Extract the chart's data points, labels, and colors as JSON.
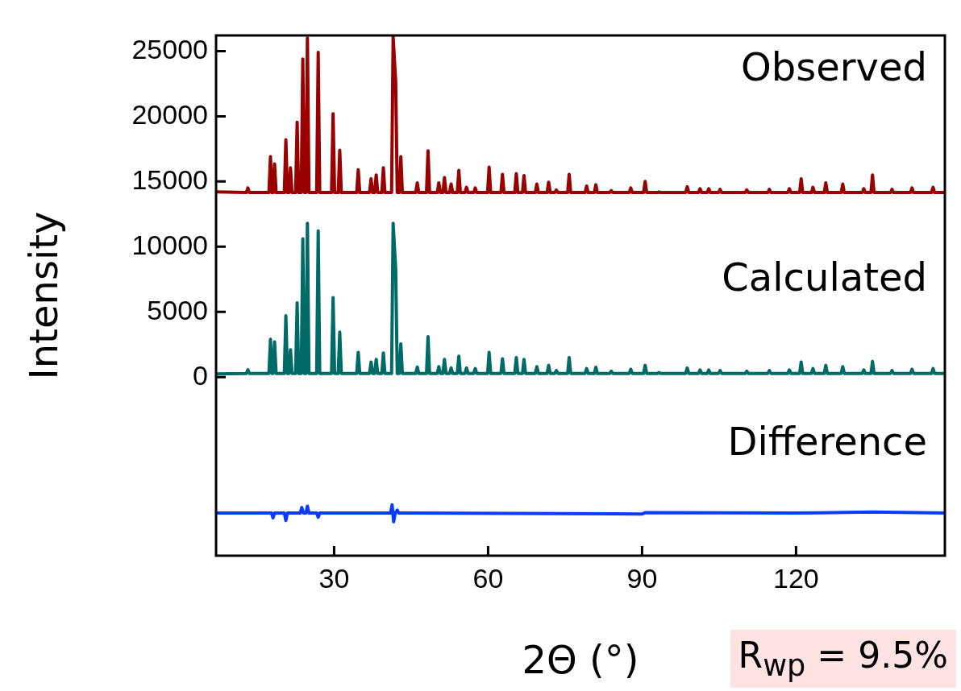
{
  "chart_data": {
    "type": "line",
    "xlabel": "2Θ (°)",
    "ylabel": "Intensity",
    "xlim": [
      7,
      149
    ],
    "xticks": [
      30,
      60,
      90,
      120
    ],
    "ylim": [
      -13700,
      26200
    ],
    "yticks": [
      0,
      5000,
      10000,
      15000,
      20000,
      25000
    ],
    "x": [
      7,
      12.9,
      13.2,
      13.5,
      17.3,
      17.6,
      17.9,
      18.1,
      18.4,
      18.7,
      20.3,
      20.6,
      20.9,
      21.2,
      21.5,
      21.8,
      22.5,
      22.8,
      23.1,
      23.6,
      23.9,
      24.2,
      24.5,
      24.8,
      25.1,
      26.6,
      26.9,
      27.2,
      29.5,
      29.8,
      30.1,
      30.8,
      31.1,
      31.4,
      34.4,
      34.7,
      35.0,
      36.9,
      37.2,
      37.5,
      37.9,
      38.2,
      38.5,
      39.3,
      39.6,
      39.9,
      41.2,
      41.5,
      42.0,
      42.3,
      42.7,
      43.0,
      43.3,
      45.9,
      46.2,
      46.5,
      48.0,
      48.3,
      48.6,
      50.1,
      50.4,
      50.7,
      51.2,
      51.5,
      51.8,
      52.5,
      52.8,
      53.1,
      54.0,
      54.3,
      54.6,
      55.5,
      55.8,
      56.1,
      57.2,
      57.5,
      57.8,
      59.9,
      60.2,
      60.5,
      62.5,
      62.8,
      63.1,
      65.2,
      65.5,
      65.8,
      66.7,
      67.0,
      67.3,
      69.2,
      69.5,
      69.8,
      71.5,
      71.8,
      72.1,
      73.0,
      73.3,
      73.6,
      75.5,
      75.8,
      76.1,
      78.9,
      79.2,
      79.5,
      80.7,
      81.0,
      81.3,
      83.7,
      84.0,
      84.3,
      87.5,
      87.8,
      88.1,
      90.3,
      90.6,
      90.9,
      93.0,
      93.3,
      93.6,
      98.5,
      98.8,
      99.1,
      101.0,
      101.3,
      101.6,
      102.7,
      103.0,
      103.3,
      104.9,
      105.2,
      105.5,
      110.1,
      110.4,
      110.7,
      114.5,
      114.8,
      115.1,
      118.4,
      118.7,
      119.0,
      120.7,
      121.0,
      121.3,
      123.0,
      123.3,
      123.6,
      125.5,
      125.8,
      126.1,
      128.8,
      129.1,
      129.4,
      132.9,
      133.2,
      133.5,
      134.6,
      134.9,
      135.2,
      138.4,
      138.7,
      139.0,
      142.3,
      142.6,
      142.9,
      146.4,
      146.7,
      147.0,
      148.9
    ],
    "series": [
      {
        "name": "Observed",
        "color": "#990000",
        "values": [
          14200,
          14150,
          14500,
          14150,
          14150,
          16900,
          14150,
          14150,
          16350,
          14150,
          14150,
          18200,
          14150,
          14150,
          16050,
          14150,
          14150,
          19550,
          14150,
          14150,
          24400,
          14150,
          14150,
          26000,
          14150,
          14150,
          24900,
          14150,
          14150,
          20200,
          14150,
          14150,
          17400,
          14150,
          14150,
          15900,
          14150,
          14150,
          15200,
          14150,
          14150,
          15500,
          14150,
          14150,
          16050,
          14150,
          14150,
          26100,
          22650,
          14150,
          14150,
          16900,
          14150,
          14150,
          14900,
          14150,
          14150,
          17350,
          14150,
          14150,
          14900,
          14150,
          14150,
          15300,
          14150,
          14150,
          14800,
          14150,
          14150,
          15850,
          14150,
          14150,
          14550,
          14150,
          14150,
          14500,
          14150,
          14150,
          16100,
          14150,
          14150,
          15550,
          14150,
          14150,
          15600,
          14150,
          14150,
          15450,
          14150,
          14150,
          14800,
          14150,
          14150,
          14950,
          14150,
          14150,
          14350,
          14150,
          14150,
          15550,
          14150,
          14150,
          14650,
          14150,
          14150,
          14750,
          14150,
          14150,
          14300,
          14150,
          14150,
          14500,
          14150,
          14150,
          15000,
          14150,
          14150,
          14200,
          14150,
          14150,
          14600,
          14150,
          14150,
          14450,
          14150,
          14150,
          14450,
          14150,
          14150,
          14400,
          14150,
          14150,
          14350,
          14150,
          14150,
          14400,
          14150,
          14150,
          14450,
          14150,
          14150,
          15200,
          14150,
          14150,
          14550,
          14150,
          14150,
          14900,
          14150,
          14150,
          14800,
          14150,
          14150,
          14450,
          14150,
          14150,
          15500,
          14150,
          14150,
          14400,
          14150,
          14150,
          14500,
          14150,
          14150,
          14550,
          14150,
          14150
        ]
      },
      {
        "name": "Calculated",
        "color": "#006a66",
        "values": [
          250,
          280,
          560,
          280,
          280,
          2900,
          280,
          280,
          2700,
          280,
          280,
          4700,
          280,
          280,
          2100,
          280,
          280,
          5700,
          280,
          280,
          10600,
          280,
          280,
          11800,
          280,
          280,
          11200,
          280,
          280,
          6100,
          280,
          280,
          3450,
          280,
          280,
          1900,
          280,
          280,
          1150,
          280,
          280,
          1350,
          280,
          280,
          1850,
          280,
          280,
          11800,
          8300,
          280,
          280,
          2550,
          280,
          280,
          770,
          280,
          280,
          3100,
          280,
          280,
          800,
          280,
          280,
          1350,
          280,
          280,
          700,
          280,
          280,
          1600,
          280,
          280,
          700,
          280,
          280,
          650,
          280,
          280,
          1900,
          280,
          280,
          1400,
          280,
          280,
          1500,
          280,
          280,
          1350,
          280,
          280,
          800,
          280,
          280,
          900,
          280,
          280,
          500,
          280,
          280,
          1500,
          280,
          280,
          650,
          280,
          280,
          750,
          280,
          280,
          450,
          280,
          280,
          600,
          280,
          280,
          900,
          280,
          280,
          350,
          280,
          280,
          700,
          280,
          280,
          550,
          280,
          280,
          550,
          280,
          280,
          500,
          280,
          280,
          450,
          280,
          280,
          500,
          280,
          280,
          550,
          280,
          280,
          1150,
          280,
          280,
          650,
          280,
          280,
          900,
          280,
          280,
          800,
          280,
          280,
          550,
          280,
          280,
          1200,
          280,
          280,
          500,
          280,
          280,
          600,
          280,
          280,
          650,
          280,
          280
        ]
      },
      {
        "name": "Difference",
        "color": "#0a3cff",
        "x": [
          7,
          17.8,
          18.1,
          18.4,
          20.3,
          20.6,
          20.9,
          23.4,
          23.7,
          24.0,
          24.5,
          24.8,
          25.1,
          26.6,
          26.9,
          27.2,
          41.0,
          41.3,
          41.6,
          41.9,
          42.3,
          42.6,
          90,
          90.6,
          120,
          134.9,
          148.9
        ],
        "values": [
          -10430,
          -10430,
          -10800,
          -10430,
          -10430,
          -11000,
          -10430,
          -10430,
          -10000,
          -10430,
          -10430,
          -9900,
          -10430,
          -10430,
          -10750,
          -10430,
          -10430,
          -9800,
          -11100,
          -10430,
          -10200,
          -10430,
          -10500,
          -10400,
          -10430,
          -10350,
          -10430
        ]
      }
    ],
    "annotations": [
      "R$_{wp}$ = 9.5%"
    ]
  }
}
